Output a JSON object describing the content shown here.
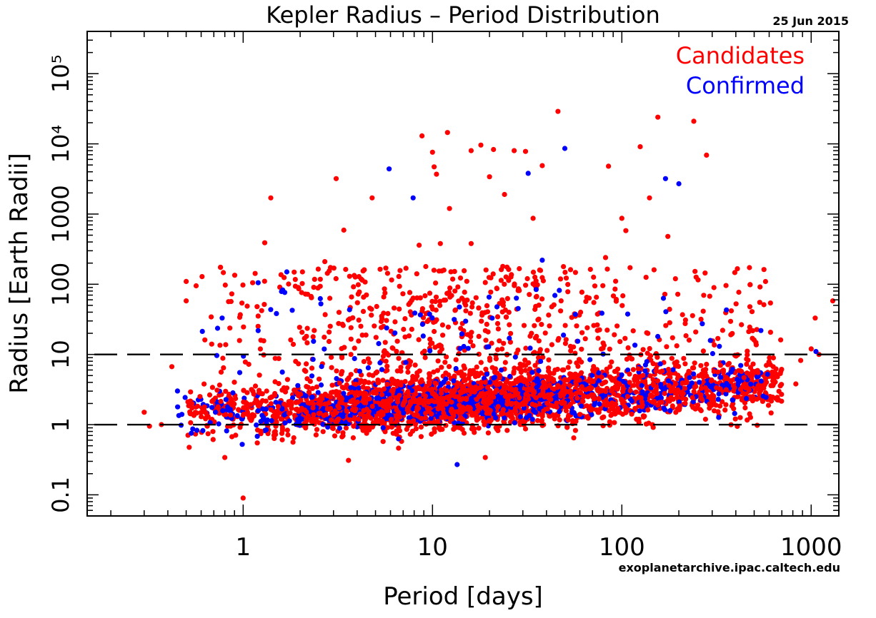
{
  "header": {
    "title": "Kepler Radius – Period Distribution",
    "date": "25 Jun 2015",
    "credit": "exoplanetarchive.ipac.caltech.edu"
  },
  "chart_data": {
    "type": "scatter",
    "title": "Kepler Radius – Period Distribution",
    "xlabel": "Period [days]",
    "ylabel": "Radius [Earth Radii]",
    "xscale": "log",
    "yscale": "log",
    "xlim": [
      0.15,
      1400
    ],
    "ylim": [
      0.05,
      400000
    ],
    "xticks": [
      1,
      10,
      100,
      1000
    ],
    "xtick_labels": [
      "1",
      "10",
      "100",
      "1000"
    ],
    "yticks": [
      0.1,
      1,
      10,
      100,
      1000,
      10000,
      100000
    ],
    "ytick_labels": [
      "0.1",
      "1",
      "10",
      "100",
      "1000",
      "10⁴",
      "10⁵"
    ],
    "reference_lines": [
      1,
      10
    ],
    "legend": {
      "placement": "top-right",
      "entries": [
        "Candidates",
        "Confirmed"
      ]
    },
    "series": [
      {
        "name": "Candidates",
        "color": "#ff0000"
      },
      {
        "name": "Confirmed",
        "color": "#0000ff"
      }
    ],
    "outliers": {
      "Candidates": [
        [
          46,
          29000
        ],
        [
          155,
          24000
        ],
        [
          240,
          21000
        ],
        [
          8.8,
          13000
        ],
        [
          12,
          14500
        ],
        [
          18,
          9600
        ],
        [
          21,
          8300
        ],
        [
          27,
          8000
        ],
        [
          31,
          7800
        ],
        [
          10,
          7600
        ],
        [
          16,
          8000
        ],
        [
          125,
          9100
        ],
        [
          280,
          6900
        ],
        [
          10.2,
          4700
        ],
        [
          38,
          4900
        ],
        [
          85,
          4800
        ],
        [
          20,
          3400
        ],
        [
          10.5,
          3700
        ],
        [
          3.1,
          3200
        ],
        [
          24,
          1900
        ],
        [
          4.8,
          1700
        ],
        [
          1.4,
          1700
        ],
        [
          140,
          1700
        ],
        [
          12.3,
          1200
        ],
        [
          34,
          870
        ],
        [
          100,
          870
        ],
        [
          105,
          580
        ],
        [
          3.4,
          590
        ],
        [
          175,
          480
        ],
        [
          11,
          380
        ],
        [
          8.5,
          360
        ],
        [
          1.3,
          390
        ],
        [
          16,
          380
        ],
        [
          82,
          240
        ],
        [
          2.7,
          210
        ],
        [
          0.3,
          1.5
        ],
        [
          0.32,
          0.95
        ],
        [
          0.37,
          1.0
        ],
        [
          0.42,
          6.7
        ],
        [
          1.0,
          0.09
        ],
        [
          0.8,
          0.34
        ],
        [
          19,
          0.34
        ],
        [
          3.6,
          0.31
        ],
        [
          1300,
          58
        ],
        [
          1050,
          33
        ],
        [
          880,
          8.2
        ],
        [
          830,
          3.8
        ],
        [
          1000,
          12
        ],
        [
          1100,
          10
        ]
      ],
      "Confirmed": [
        [
          50,
          8600
        ],
        [
          170,
          3200
        ],
        [
          200,
          2700
        ],
        [
          5.9,
          4400
        ],
        [
          7.9,
          1700
        ],
        [
          32,
          3800
        ],
        [
          38,
          220
        ],
        [
          1.7,
          150
        ],
        [
          1.2,
          105
        ],
        [
          13.5,
          0.27
        ],
        [
          1060,
          11
        ]
      ]
    },
    "density_summary": {
      "Candidates": {
        "count_shown_approx": 3000,
        "period_range": [
          0.5,
          700
        ],
        "radius_core_range": [
          0.5,
          6
        ],
        "radius_scatter_range": [
          6,
          180
        ]
      },
      "Confirmed": {
        "count_shown_approx": 1000,
        "period_range": [
          0.45,
          700
        ],
        "radius_core_range": [
          0.6,
          4
        ],
        "radius_scatter_range": [
          4,
          90
        ]
      }
    }
  }
}
